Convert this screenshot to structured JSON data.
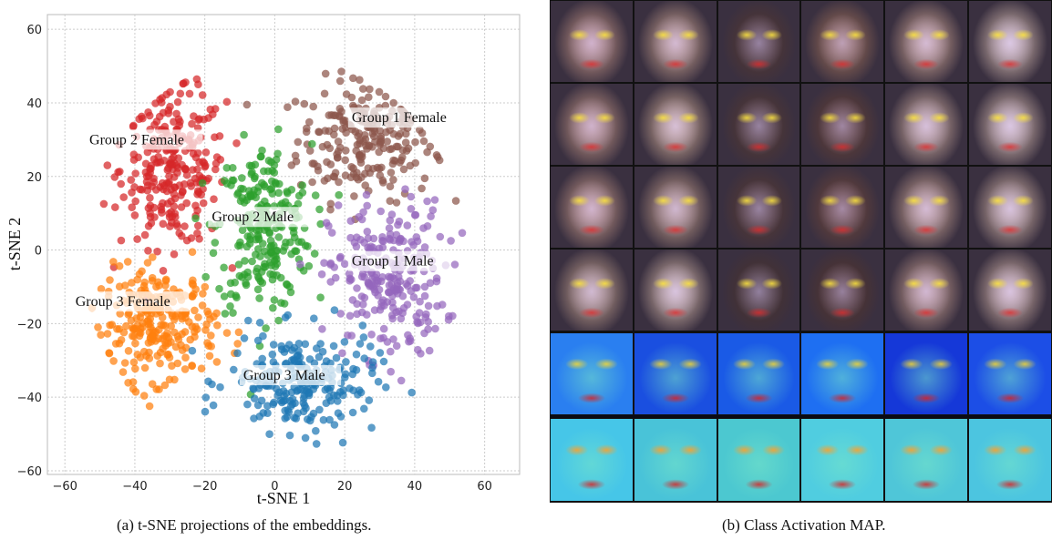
{
  "captions": {
    "a": "(a) t-SNE projections of the embeddings.",
    "b": "(b) Class Activation MAP."
  },
  "chart_data": [
    {
      "type": "scatter",
      "title": "",
      "xlabel": "t-SNE 1",
      "ylabel": "t-SNE 2",
      "xlim": [
        -65,
        70
      ],
      "ylim": [
        -61,
        64
      ],
      "xticks": [
        -60,
        -40,
        -20,
        0,
        20,
        40,
        60
      ],
      "yticks": [
        -60,
        -40,
        -20,
        0,
        20,
        40,
        60
      ],
      "grid": true,
      "clusters": [
        {
          "name": "Group 1 Female",
          "color": "#8c564b",
          "center": [
            26,
            30
          ],
          "spread": [
            13,
            11
          ],
          "count": 230
        },
        {
          "name": "Group 2 Female",
          "color": "#d62728",
          "center": [
            -29,
            22
          ],
          "spread": [
            10,
            14
          ],
          "count": 260
        },
        {
          "name": "Group 2 Male",
          "color": "#2ca02c",
          "center": [
            -3,
            6
          ],
          "spread": [
            9,
            15
          ],
          "count": 250
        },
        {
          "name": "Group 1 Male",
          "color": "#9467bd",
          "center": [
            32,
            -8
          ],
          "spread": [
            11,
            14
          ],
          "count": 250
        },
        {
          "name": "Group 3 Female",
          "color": "#ff7f0e",
          "center": [
            -33,
            -20
          ],
          "spread": [
            11,
            10
          ],
          "count": 250
        },
        {
          "name": "Group 3 Male",
          "color": "#1f77b4",
          "center": [
            8,
            -36
          ],
          "spread": [
            14,
            9
          ],
          "count": 230
        }
      ],
      "annotations": [
        {
          "text": "Group 1 Female",
          "x": 22,
          "y": 35
        },
        {
          "text": "Group 2 Female",
          "x": -53,
          "y": 29
        },
        {
          "text": "Group 2 Male",
          "x": -18,
          "y": 8
        },
        {
          "text": "Group 1 Male",
          "x": 22,
          "y": -4
        },
        {
          "text": "Group 3 Female",
          "x": -57,
          "y": -15
        },
        {
          "text": "Group 3 Male",
          "x": -9,
          "y": -35
        }
      ]
    }
  ],
  "cam": {
    "face_rows": [
      [
        "#d9a38f",
        "#e0b39a",
        "#5a3a2e",
        "#b07a5c",
        "#e3b59e",
        "#f0d2c2"
      ],
      [
        "#d8a48e",
        "#e8c0a3",
        "#5b3b2d",
        "#6e4330",
        "#e6c0ad",
        "#efd0c0"
      ],
      [
        "#dba791",
        "#d7ad94",
        "#5e3c2f",
        "#7a4a36",
        "#e2b6a0",
        "#e9c7b4"
      ],
      [
        "#d9b39a",
        "#ebcab6",
        "#4f3428",
        "#5b3626",
        "#dcae9b",
        "#ecc9b8"
      ]
    ],
    "heatmap_rows": 2,
    "heatmap_cols": 6
  }
}
